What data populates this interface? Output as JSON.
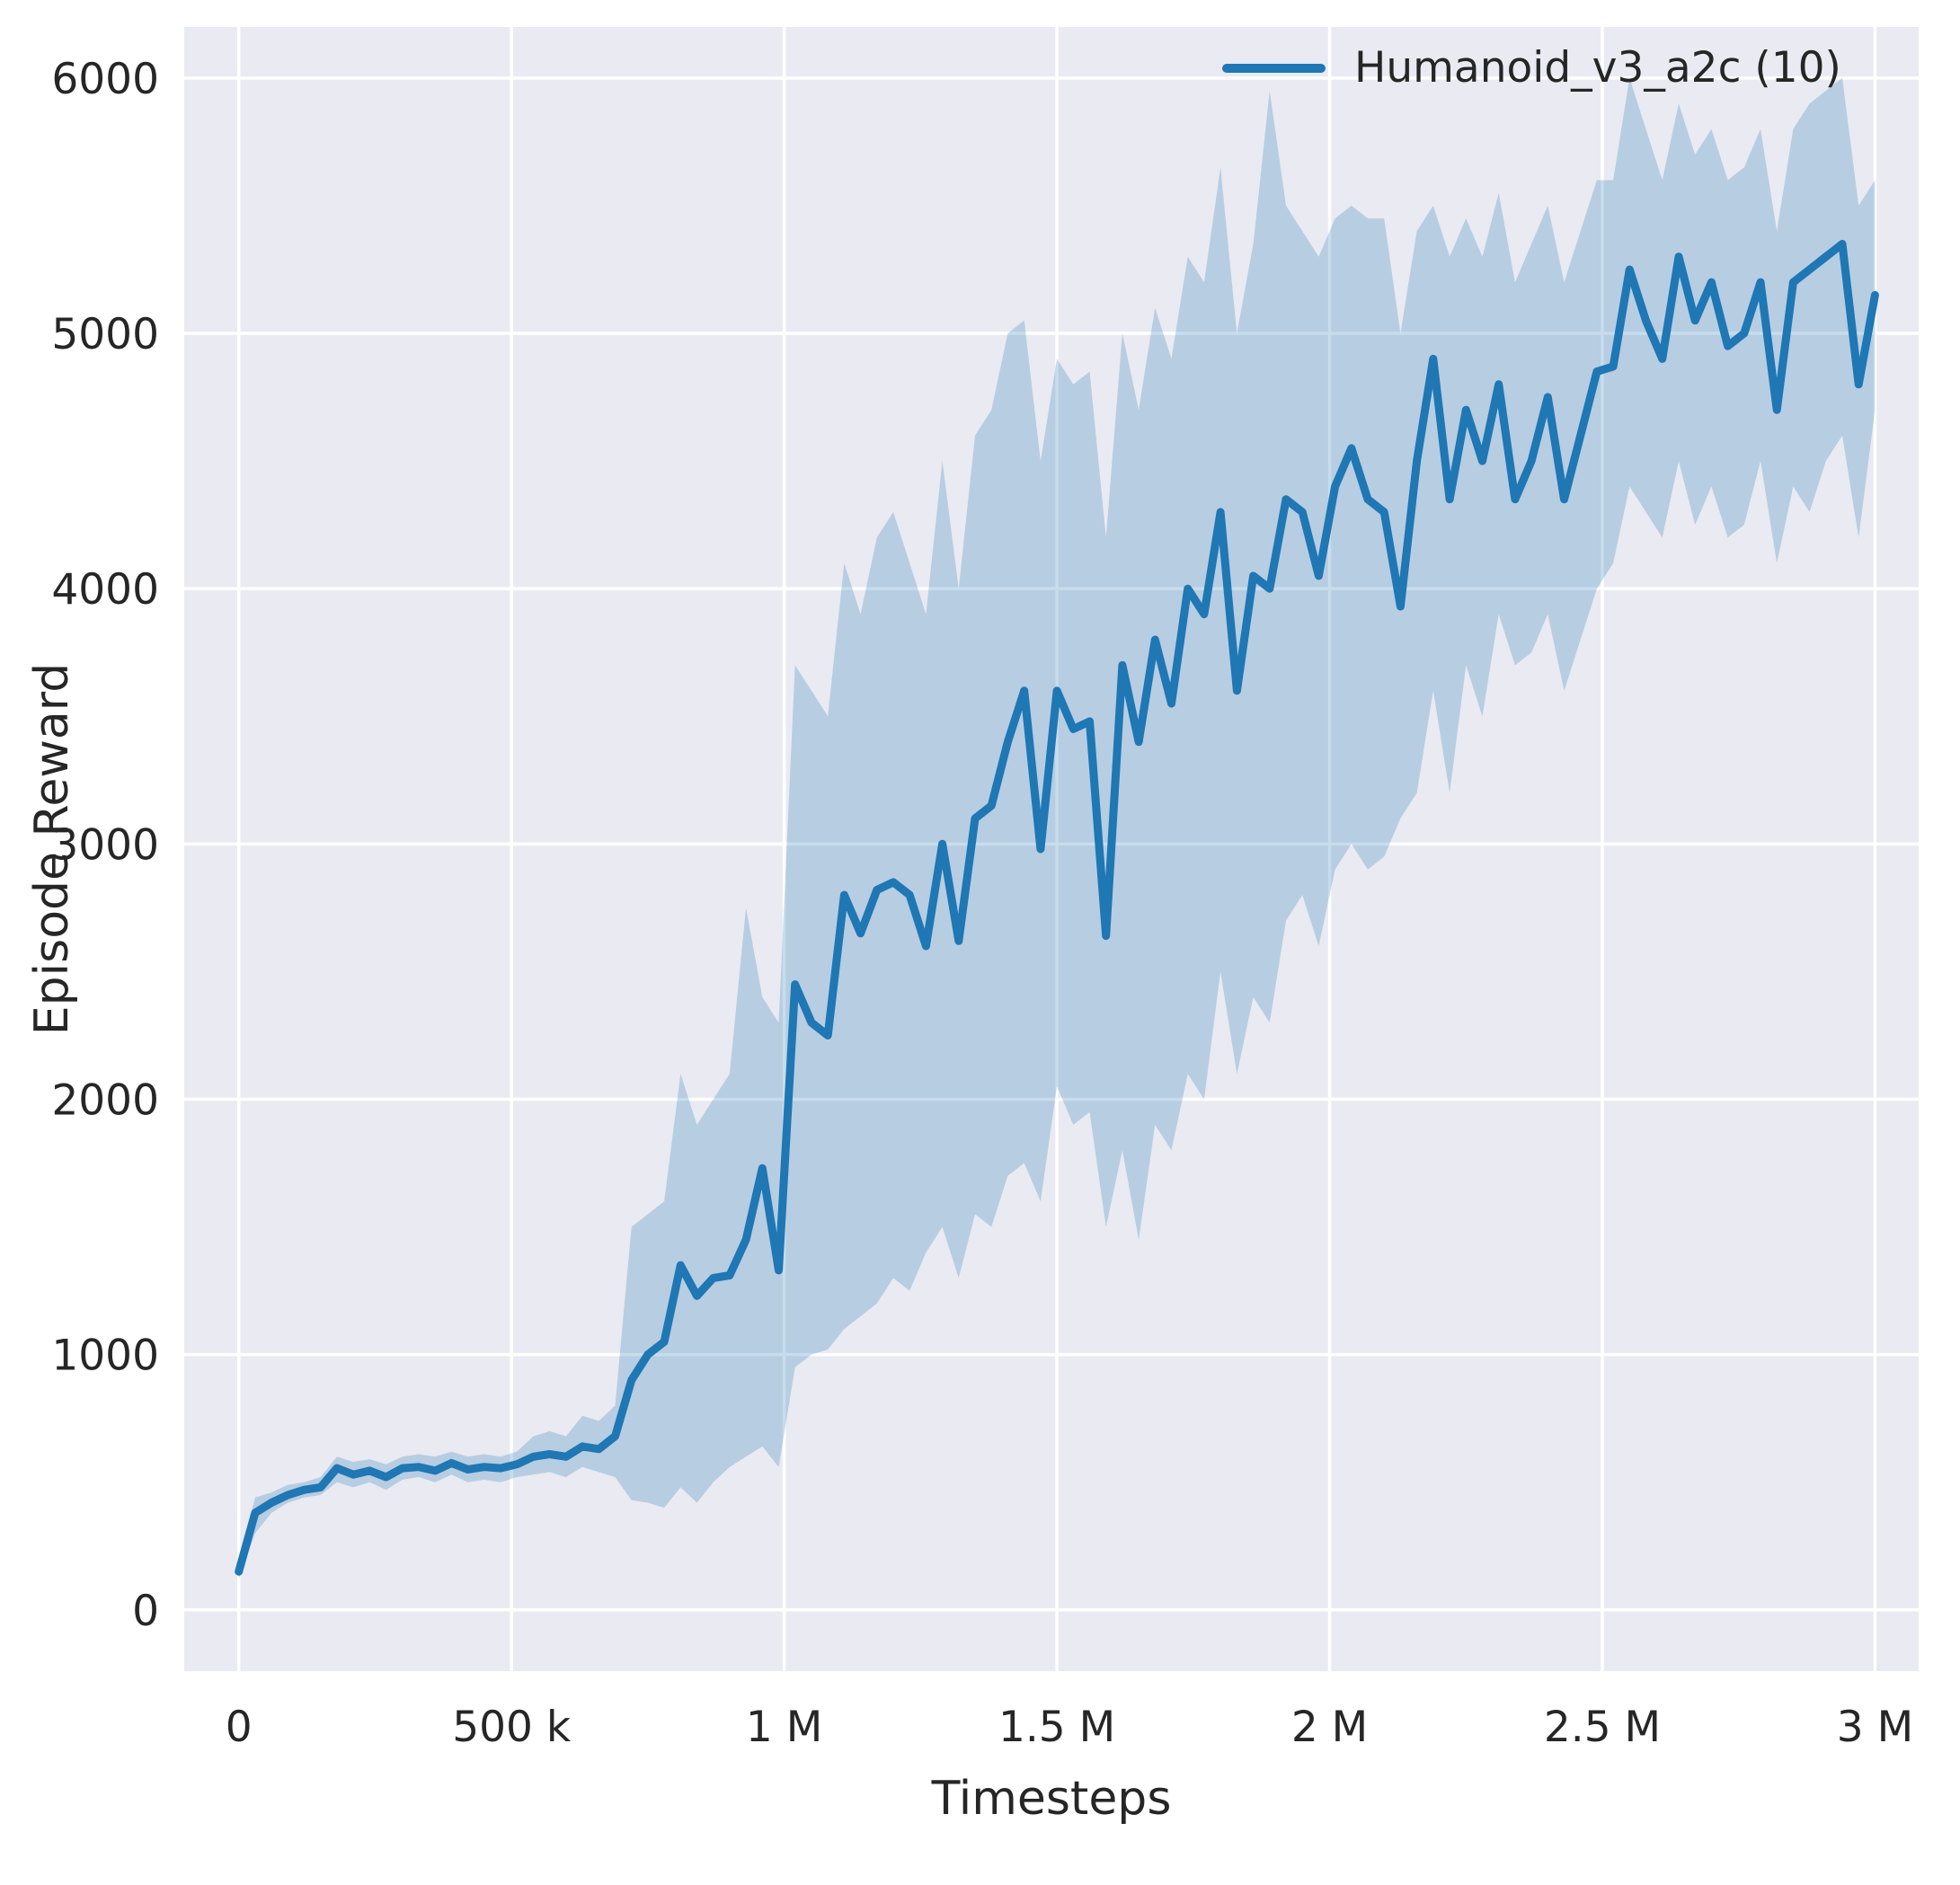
{
  "chart_data": {
    "type": "line",
    "title": "",
    "xlabel": "Timesteps",
    "ylabel": "Episode Reward",
    "xlim": [
      -100000,
      3080000
    ],
    "ylim": [
      -240,
      6200
    ],
    "grid": true,
    "legend_position": "upper right",
    "xticks": {
      "values": [
        0,
        500000,
        1000000,
        1500000,
        2000000,
        2500000,
        3000000
      ],
      "labels": [
        "0",
        "500 k",
        "1 M",
        "1.5 M",
        "2 M",
        "2.5 M",
        "3 M"
      ]
    },
    "yticks": {
      "values": [
        0,
        1000,
        2000,
        3000,
        4000,
        5000,
        6000
      ],
      "labels": [
        "0",
        "1000",
        "2000",
        "3000",
        "4000",
        "5000",
        "6000"
      ]
    },
    "colors": {
      "line": "#1f77b4",
      "band_fill": "#1f77b4",
      "band_opacity": 0.25,
      "plot_bg": "#eaeaf2",
      "grid": "#ffffff",
      "text": "#262626"
    },
    "x": [
      0,
      30000,
      60000,
      90000,
      120000,
      150000,
      180000,
      210000,
      240000,
      270000,
      300000,
      330000,
      360000,
      390000,
      420000,
      450000,
      480000,
      510000,
      540000,
      570000,
      600000,
      630000,
      660000,
      690000,
      720000,
      750000,
      780000,
      810000,
      840000,
      870000,
      900000,
      930000,
      960000,
      990000,
      1020000,
      1050000,
      1080000,
      1110000,
      1140000,
      1170000,
      1200000,
      1230000,
      1260000,
      1290000,
      1320000,
      1350000,
      1380000,
      1410000,
      1440000,
      1470000,
      1500000,
      1530000,
      1560000,
      1590000,
      1620000,
      1650000,
      1680000,
      1710000,
      1740000,
      1770000,
      1800000,
      1830000,
      1860000,
      1890000,
      1920000,
      1950000,
      1980000,
      2010000,
      2040000,
      2070000,
      2100000,
      2130000,
      2160000,
      2190000,
      2220000,
      2250000,
      2280000,
      2310000,
      2340000,
      2370000,
      2400000,
      2430000,
      2460000,
      2490000,
      2520000,
      2550000,
      2580000,
      2610000,
      2640000,
      2670000,
      2700000,
      2730000,
      2760000,
      2790000,
      2820000,
      2850000,
      2880000,
      2910000,
      2940000,
      2970000,
      3000000
    ],
    "series": [
      {
        "name": "Humanoid_v3_a2c (10)",
        "mean": [
          150,
          380,
          420,
          450,
          470,
          480,
          555,
          530,
          545,
          520,
          555,
          560,
          545,
          575,
          550,
          560,
          555,
          570,
          600,
          610,
          600,
          640,
          630,
          680,
          900,
          1000,
          1050,
          1350,
          1230,
          1300,
          1310,
          1450,
          1730,
          1330,
          2450,
          2300,
          2250,
          2800,
          2650,
          2820,
          2850,
          2800,
          2600,
          3000,
          2620,
          3100,
          3150,
          3400,
          3600,
          2980,
          3600,
          3450,
          3480,
          2640,
          3700,
          3400,
          3800,
          3550,
          4000,
          3900,
          4300,
          3600,
          4050,
          4000,
          4350,
          4300,
          4050,
          4400,
          4550,
          4350,
          4300,
          3930,
          4500,
          4900,
          4350,
          4700,
          4500,
          4800,
          4350,
          4500,
          4750,
          4350,
          4600,
          4850,
          4870,
          5250,
          5050,
          4900,
          5300,
          5050,
          5200,
          4950,
          5000,
          5200,
          4700,
          5200,
          5250,
          5300,
          5350,
          4800,
          5150
        ],
        "lower": [
          120,
          300,
          380,
          420,
          440,
          450,
          500,
          480,
          500,
          470,
          510,
          520,
          500,
          530,
          500,
          510,
          500,
          520,
          530,
          540,
          520,
          560,
          540,
          520,
          430,
          420,
          400,
          480,
          420,
          500,
          560,
          600,
          640,
          560,
          950,
          1000,
          1020,
          1100,
          1150,
          1200,
          1300,
          1250,
          1400,
          1500,
          1300,
          1550,
          1500,
          1700,
          1750,
          1600,
          2050,
          1900,
          1950,
          1500,
          1800,
          1450,
          1900,
          1800,
          2100,
          2000,
          2500,
          2100,
          2400,
          2300,
          2700,
          2800,
          2600,
          2900,
          3000,
          2900,
          2950,
          3100,
          3200,
          3600,
          3200,
          3700,
          3500,
          3900,
          3700,
          3750,
          3900,
          3600,
          3800,
          4000,
          4100,
          4400,
          4300,
          4200,
          4500,
          4250,
          4400,
          4200,
          4250,
          4500,
          4100,
          4400,
          4300,
          4500,
          4600,
          4200,
          4700
        ],
        "upper": [
          200,
          440,
          460,
          490,
          500,
          520,
          600,
          580,
          590,
          570,
          600,
          610,
          600,
          620,
          600,
          610,
          600,
          620,
          680,
          700,
          680,
          760,
          740,
          800,
          1500,
          1550,
          1600,
          2100,
          1900,
          2000,
          2100,
          2750,
          2400,
          2300,
          3700,
          3600,
          3500,
          4100,
          3900,
          4200,
          4300,
          4100,
          3900,
          4500,
          4000,
          4600,
          4700,
          5000,
          5050,
          4500,
          4900,
          4800,
          4850,
          4200,
          5000,
          4700,
          5100,
          4900,
          5300,
          5200,
          5650,
          5000,
          5350,
          5950,
          5500,
          5400,
          5300,
          5450,
          5500,
          5450,
          5450,
          5000,
          5400,
          5500,
          5300,
          5450,
          5300,
          5550,
          5200,
          5350,
          5500,
          5200,
          5400,
          5600,
          5600,
          6000,
          5800,
          5600,
          5900,
          5700,
          5800,
          5600,
          5650,
          5800,
          5400,
          5800,
          5900,
          5950,
          6000,
          5500,
          5600
        ]
      }
    ]
  }
}
